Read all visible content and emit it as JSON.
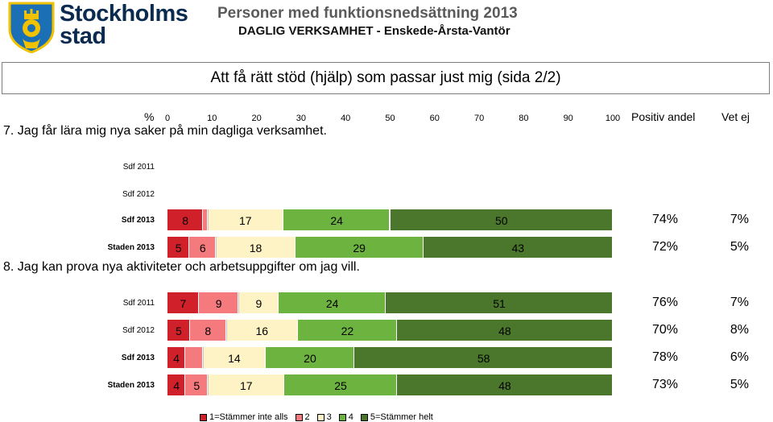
{
  "header": {
    "brand_line1": "Stockholms",
    "brand_line2": "stad",
    "title": "Personer med funktionsnedsättning 2013",
    "subtitle": "DAGLIG VERKSAMHET - Enskede-Årsta-Vantör",
    "logo_icon": "stockholm-crest-icon"
  },
  "section_title": "Att få rätt stöd (hjälp) som passar just mig (sida 2/2)",
  "columns": {
    "percent_symbol": "%",
    "positive": "Positiv andel",
    "dontknow": "Vet ej"
  },
  "chart_data": {
    "type": "bar",
    "orientation": "horizontal-stacked-percent",
    "xlim": [
      0,
      100
    ],
    "xticks": [
      "0",
      "10",
      "20",
      "30",
      "40",
      "50",
      "60",
      "70",
      "80",
      "90",
      "100"
    ],
    "legend": {
      "placement": "bottom",
      "entries": [
        "1=Stämmer inte alls",
        "2",
        "3",
        "4",
        "5=Stämmer helt"
      ]
    },
    "colors": [
      "#d0202a",
      "#f47a7e",
      "#fdf3c4",
      "#6cb33f",
      "#4a772b"
    ],
    "questions": [
      {
        "label": "7. Jag får lära mig nya saker på min dagliga verksamhet.",
        "rows": [
          {
            "label": "Sdf 2011",
            "bold": false,
            "values": [],
            "positive": "",
            "dontknow": ""
          },
          {
            "label": "Sdf 2012",
            "bold": false,
            "values": [],
            "positive": "",
            "dontknow": ""
          },
          {
            "label": "Sdf 2013",
            "bold": true,
            "values": [
              8,
              1,
              17,
              24,
              50
            ],
            "labels": [
              "8",
              "",
              "17",
              "24",
              "50"
            ],
            "positive": "74%",
            "dontknow": "7%"
          },
          {
            "label": "Staden 2013",
            "bold": true,
            "values": [
              5,
              6,
              18,
              29,
              43
            ],
            "labels": [
              "5",
              "6",
              "18",
              "29",
              "43"
            ],
            "positive": "72%",
            "dontknow": "5%"
          }
        ]
      },
      {
        "label": "8. Jag kan prova nya aktiviteter och arbetsuppgifter om jag vill.",
        "rows": [
          {
            "label": "Sdf 2011",
            "bold": false,
            "values": [
              7,
              9,
              9,
              24,
              51
            ],
            "labels": [
              "7",
              "9",
              "9",
              "24",
              "51"
            ],
            "positive": "76%",
            "dontknow": "7%"
          },
          {
            "label": "Sdf 2012",
            "bold": false,
            "values": [
              5,
              8,
              16,
              22,
              48
            ],
            "labels": [
              "5",
              "8",
              "16",
              "22",
              "48"
            ],
            "positive": "70%",
            "dontknow": "8%"
          },
          {
            "label": "Sdf 2013",
            "bold": true,
            "values": [
              4,
              4,
              14,
              20,
              58
            ],
            "labels": [
              "4",
              "",
              "14",
              "20",
              "58"
            ],
            "positive": "78%",
            "dontknow": "6%"
          },
          {
            "label": "Staden 2013",
            "bold": true,
            "values": [
              4,
              5,
              17,
              25,
              48
            ],
            "labels": [
              "4",
              "5",
              "17",
              "25",
              "48"
            ],
            "positive": "73%",
            "dontknow": "5%"
          }
        ]
      }
    ]
  }
}
